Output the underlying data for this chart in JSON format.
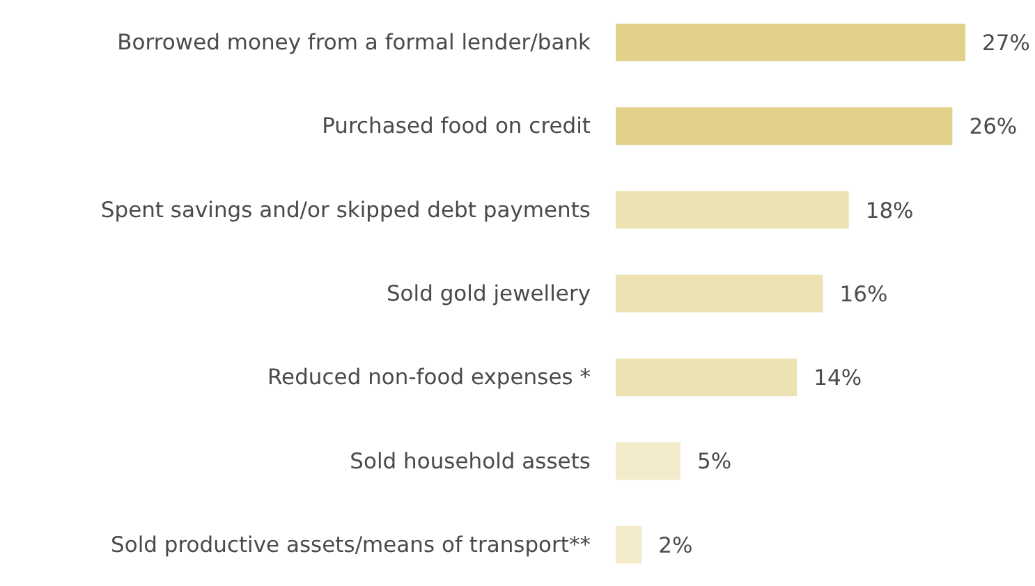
{
  "chart_data": {
    "type": "bar",
    "orientation": "horizontal",
    "categories": [
      "Borrowed money from a formal lender/bank",
      "Purchased food on credit",
      "Spent savings and/or skipped debt payments",
      "Sold gold jewellery",
      "Reduced non-food expenses *",
      "Sold household assets",
      "Sold productive assets/means of transport**"
    ],
    "values": [
      27,
      26,
      18,
      16,
      14,
      5,
      2
    ],
    "colors": [
      "#e2d18b",
      "#e2d18b",
      "#ede2b2",
      "#ede2b2",
      "#ede2b2",
      "#f3eaca",
      "#f3eaca"
    ],
    "value_labels": [
      "27%",
      "26%",
      "18%",
      "16%",
      "14%",
      "5%",
      "2%"
    ]
  }
}
